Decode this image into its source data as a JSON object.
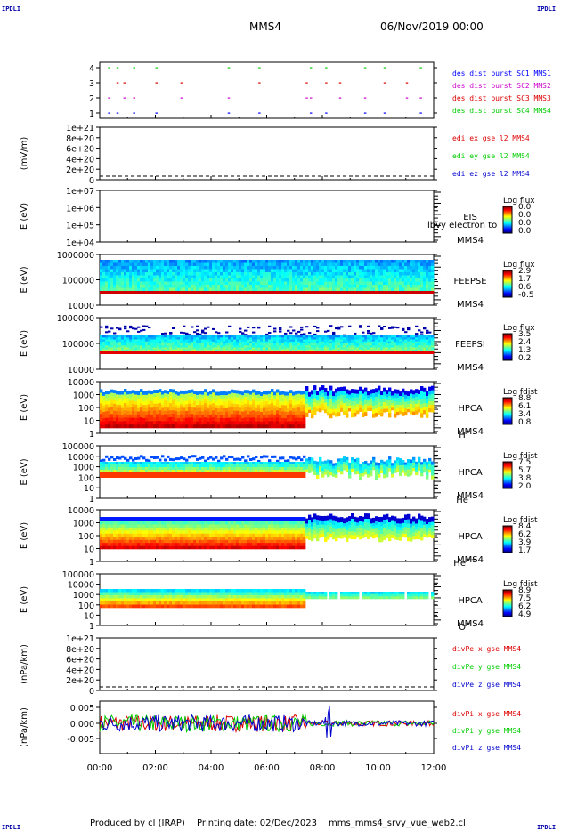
{
  "header": {
    "corner_label": "IPDLI",
    "spacecraft": "MMS4",
    "datetime": "06/Nov/2019 00:00"
  },
  "footer": {
    "produced_by": "Produced by cl (IRAP)",
    "printing_date": "Printing date: 02/Dec/2023",
    "filename": "mms_mms4_srvy_vue_web2.cl"
  },
  "chart_data": [
    {
      "panel": "burst",
      "type": "scatter",
      "ylim": [
        0.5,
        4.5
      ],
      "y_ticks": [
        "4",
        "3",
        "2",
        "1"
      ],
      "legend": [
        {
          "text": "des dist burst SC1 MMS1",
          "color": "#0000ff",
          "level": 1
        },
        {
          "text": "des dist burst SC2 MMS2",
          "color": "#cc00cc",
          "level": 2
        },
        {
          "text": "des dist burst SC3 MMS3",
          "color": "#dd0000",
          "level": 3
        },
        {
          "text": "des dist burst SC4 MMS4",
          "color": "#00cc00",
          "level": 4
        }
      ],
      "burst_times_hours": [
        0.3,
        0.6,
        0.85,
        1.2,
        2.0,
        2.9,
        4.6,
        5.7,
        7.4,
        7.55,
        8.1,
        8.6,
        9.5,
        10.2,
        11.0,
        11.5
      ]
    },
    {
      "panel": "efield",
      "type": "line",
      "ylabel": "(mV/m)",
      "y_ticks": [
        "1e+21",
        "8e+20",
        "6e+20",
        "4e+20",
        "2e+20",
        "0"
      ],
      "ylim": [
        0,
        1e+21
      ],
      "legend": [
        {
          "text": "edi ex gse l2 MMS4",
          "color": "#dd0000"
        },
        {
          "text": "edi ey gse l2 MMS4",
          "color": "#00cc00"
        },
        {
          "text": "edi ez gse l2 MMS4",
          "color": "#0000cc"
        }
      ]
    },
    {
      "panel": "eis",
      "type": "heatmap",
      "ylabel": "E (eV)",
      "y_ticks": [
        "1e+07",
        "1e+06",
        "1e+05",
        "1e+04"
      ],
      "labels": [
        "EIS",
        "MMS4"
      ],
      "overlay_text": "lbvy electron to",
      "colorbar_title": "Log flux",
      "colorbar_ticks": [
        "0.0",
        "0.0",
        "0.0",
        "0.0"
      ]
    },
    {
      "panel": "feepse",
      "type": "heatmap",
      "ylabel": "E (eV)",
      "y_ticks": [
        "1000000",
        "100000",
        "10000"
      ],
      "labels": [
        "FEEPSE",
        "MMS4"
      ],
      "colorbar_title": "Log flux",
      "colorbar_ticks": [
        "2.9",
        "1.7",
        "0.6",
        "-0.5"
      ]
    },
    {
      "panel": "feepsi",
      "type": "heatmap",
      "ylabel": "E (eV)",
      "y_ticks": [
        "1000000",
        "100000",
        "10000"
      ],
      "labels": [
        "FEEPSI",
        "MMS4"
      ],
      "colorbar_title": "Log flux",
      "colorbar_ticks": [
        "3.5",
        "2.4",
        "1.3",
        "0.2"
      ]
    },
    {
      "panel": "hpca_h",
      "type": "heatmap",
      "ylabel": "E (eV)",
      "y_ticks": [
        "10000",
        "1000",
        "100",
        "10",
        "1"
      ],
      "labels": [
        "HPCA",
        "MMS4"
      ],
      "species": "H",
      "species_sup": "+",
      "colorbar_title": "Log fdist",
      "colorbar_ticks": [
        "8.8",
        "6.1",
        "3.4",
        "0.8"
      ]
    },
    {
      "panel": "hpca_he",
      "type": "heatmap",
      "ylabel": "E (eV)",
      "y_ticks": [
        "100000",
        "10000",
        "1000",
        "100",
        "10",
        "1"
      ],
      "labels": [
        "HPCA",
        "MMS4"
      ],
      "species": "He",
      "species_sup": "+",
      "colorbar_title": "Log fdist",
      "colorbar_ticks": [
        "7.5",
        "5.7",
        "3.8",
        "2.0"
      ]
    },
    {
      "panel": "hpca_hepp",
      "type": "heatmap",
      "ylabel": "E (eV)",
      "y_ticks": [
        "10000",
        "1000",
        "100",
        "10",
        "1"
      ],
      "labels": [
        "HPCA",
        "MMS4"
      ],
      "species": "He",
      "species_sup": "++",
      "colorbar_title": "Log fdist",
      "colorbar_ticks": [
        "8.4",
        "6.2",
        "3.9",
        "1.7"
      ]
    },
    {
      "panel": "hpca_o",
      "type": "heatmap",
      "ylabel": "E (eV)",
      "y_ticks": [
        "100000",
        "10000",
        "1000",
        "100",
        "10",
        "1"
      ],
      "labels": [
        "HPCA",
        "MMS4"
      ],
      "species": "O",
      "species_sup": "+",
      "colorbar_title": "Log fdist",
      "colorbar_ticks": [
        "8.9",
        "7.5",
        "6.2",
        "4.9"
      ]
    },
    {
      "panel": "divpe",
      "type": "line",
      "ylabel": "(nPa/km)",
      "y_ticks": [
        "1e+21",
        "8e+20",
        "6e+20",
        "4e+20",
        "2e+20",
        "0"
      ],
      "ylim": [
        0,
        1e+21
      ],
      "legend": [
        {
          "text": "divPe x gse MMS4",
          "color": "#dd0000"
        },
        {
          "text": "divPe y gse MMS4",
          "color": "#00cc00"
        },
        {
          "text": "divPe z gse MMS4",
          "color": "#0000cc"
        }
      ]
    },
    {
      "panel": "divpi",
      "type": "line",
      "ylabel": "(nPa/km)",
      "y_ticks": [
        "0.005",
        "0.000",
        "-0.005"
      ],
      "ylim": [
        -0.008,
        0.007
      ],
      "legend": [
        {
          "text": "divPi x gse MMS4",
          "color": "#dd0000"
        },
        {
          "text": "divPi y gse MMS4",
          "color": "#00cc00"
        },
        {
          "text": "divPi z gse MMS4",
          "color": "#0000cc"
        }
      ]
    }
  ],
  "x_axis": {
    "ticks": [
      "00:00",
      "02:00",
      "04:00",
      "06:00",
      "08:00",
      "10:00",
      "12:00"
    ],
    "range_hours": [
      0,
      12
    ]
  }
}
